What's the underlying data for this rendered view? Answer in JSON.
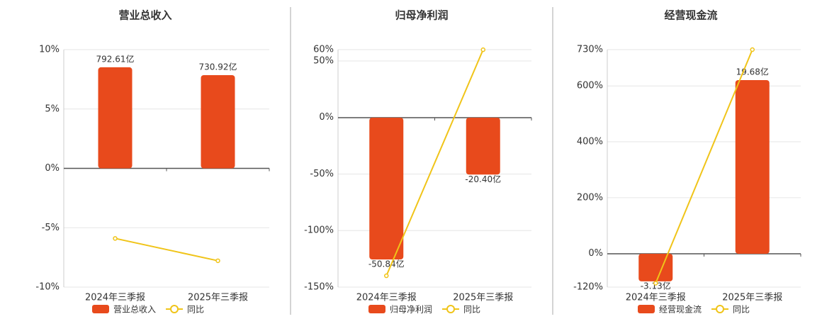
{
  "chart_data": [
    {
      "type": "bar",
      "title": "营业总收入",
      "categories": [
        "2024年三季报",
        "2025年三季报"
      ],
      "series": [
        {
          "name": "营业总收入",
          "color": "#e84a1c",
          "axis": "y2",
          "values": [
            792.61,
            730.92
          ],
          "value_labels": [
            "792.61亿",
            "730.92亿"
          ]
        },
        {
          "name": "同比",
          "type": "line",
          "color": "#f0c419",
          "values": [
            -5.9,
            -7.78
          ]
        }
      ],
      "ylim": [
        -10,
        10
      ],
      "yticks": [
        {
          "value": -10,
          "label": "-10%"
        },
        {
          "value": -5,
          "label": "-5%"
        },
        {
          "value": 0,
          "label": "0%"
        },
        {
          "value": 5,
          "label": "5%"
        },
        {
          "value": 10,
          "label": "10%"
        }
      ],
      "y2lim": [
        -931,
        931
      ],
      "grid": true
    },
    {
      "type": "bar",
      "title": "归母净利润",
      "categories": [
        "2024年三季报",
        "2025年三季报"
      ],
      "series": [
        {
          "name": "归母净利润",
          "color": "#e84a1c",
          "axis": "y2",
          "values": [
            -50.84,
            -20.4
          ],
          "value_labels": [
            "-50.84亿",
            "-20.40亿"
          ]
        },
        {
          "name": "同比",
          "type": "line",
          "color": "#f0c419",
          "values": [
            -140,
            59.9
          ]
        }
      ],
      "ylim": [
        -150,
        60
      ],
      "yticks": [
        {
          "value": -150,
          "label": "-150%"
        },
        {
          "value": -100,
          "label": "-100%"
        },
        {
          "value": -50,
          "label": "-50%"
        },
        {
          "value": 0,
          "label": "0%"
        },
        {
          "value": 50,
          "label": "50%"
        },
        {
          "value": 60,
          "label": "60%"
        }
      ],
      "y2lim": [
        -60.75,
        24.4
      ],
      "grid": true
    },
    {
      "type": "bar",
      "title": "经营现金流",
      "categories": [
        "2024年三季报",
        "2025年三季报"
      ],
      "series": [
        {
          "name": "经营现金流",
          "color": "#e84a1c",
          "axis": "y2",
          "values": [
            -3.13,
            19.68
          ],
          "value_labels": [
            "-3.13亿",
            "19.68亿"
          ]
        },
        {
          "name": "同比",
          "type": "line",
          "color": "#f0c419",
          "values": [
            -106,
            730
          ]
        }
      ],
      "ylim": [
        -120,
        730
      ],
      "yticks": [
        {
          "value": -120,
          "label": "-120%"
        },
        {
          "value": 0,
          "label": "0%"
        },
        {
          "value": 200,
          "label": "200%"
        },
        {
          "value": 400,
          "label": "400%"
        },
        {
          "value": 600,
          "label": "600%"
        },
        {
          "value": 730,
          "label": "730%"
        }
      ],
      "y2lim": [
        -3.78,
        23.13
      ],
      "grid": true
    }
  ]
}
